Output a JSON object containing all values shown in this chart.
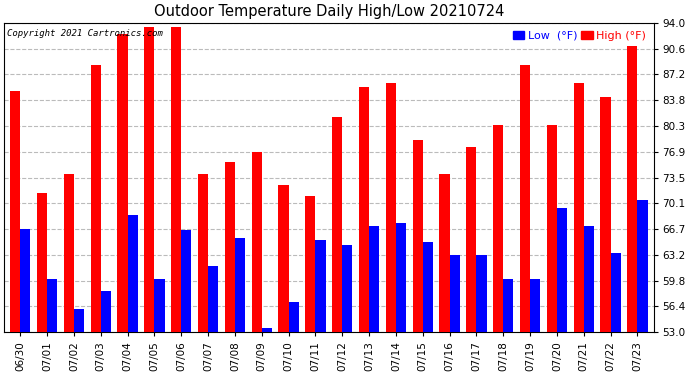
{
  "title": "Outdoor Temperature Daily High/Low 20210724",
  "copyright": "Copyright 2021 Cartronics.com",
  "legend_low": "Low  (°F)",
  "legend_high": "High (°F)",
  "low_color": "#0000ff",
  "high_color": "#ff0000",
  "background_color": "#ffffff",
  "ylim": [
    53.0,
    94.0
  ],
  "yticks": [
    53.0,
    56.4,
    59.8,
    63.2,
    66.7,
    70.1,
    73.5,
    76.9,
    80.3,
    83.8,
    87.2,
    90.6,
    94.0
  ],
  "grid_color": "#bbbbbb",
  "dates": [
    "06/30",
    "07/01",
    "07/02",
    "07/03",
    "07/04",
    "07/05",
    "07/06",
    "07/07",
    "07/08",
    "07/09",
    "07/10",
    "07/11",
    "07/12",
    "07/13",
    "07/14",
    "07/15",
    "07/16",
    "07/17",
    "07/18",
    "07/19",
    "07/20",
    "07/21",
    "07/22",
    "07/23"
  ],
  "highs": [
    85.0,
    71.5,
    74.0,
    88.5,
    92.5,
    93.5,
    93.5,
    74.0,
    75.5,
    76.9,
    72.5,
    71.0,
    81.5,
    85.5,
    86.0,
    78.5,
    74.0,
    77.5,
    80.5,
    88.5,
    80.5,
    86.0,
    84.2,
    91.0
  ],
  "lows": [
    66.7,
    60.0,
    56.0,
    58.5,
    68.5,
    60.0,
    66.5,
    61.8,
    65.5,
    53.5,
    57.0,
    65.2,
    64.5,
    67.0,
    67.5,
    65.0,
    63.2,
    63.2,
    60.0,
    60.0,
    69.5,
    67.0,
    63.5,
    70.5
  ],
  "figsize": [
    6.9,
    3.75
  ],
  "dpi": 100
}
